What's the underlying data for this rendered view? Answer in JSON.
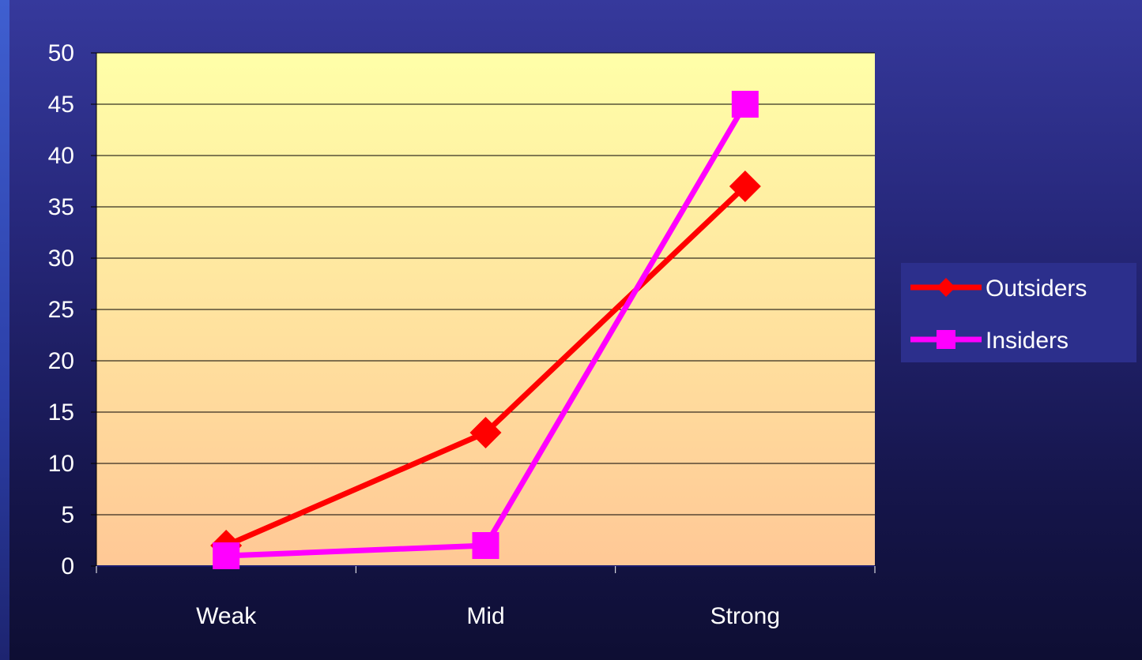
{
  "colors": {
    "plot_top": "#ffffa8",
    "plot_bottom": "#ffc896",
    "gridline": "#000000",
    "legend_bg": "#2c2f8c"
  },
  "chart_data": {
    "type": "line",
    "categories": [
      "Weak",
      "Mid",
      "Strong"
    ],
    "ylim": [
      0,
      50
    ],
    "yticks": [
      0,
      5,
      10,
      15,
      20,
      25,
      30,
      35,
      40,
      45,
      50
    ],
    "grid": true,
    "legend_position": "right",
    "series": [
      {
        "name": "Outsiders",
        "values": [
          2,
          13,
          37
        ],
        "color": "#ff0000",
        "marker": "diamond"
      },
      {
        "name": "Insiders",
        "values": [
          1,
          2,
          45
        ],
        "color": "#ff00ff",
        "marker": "square"
      }
    ]
  }
}
